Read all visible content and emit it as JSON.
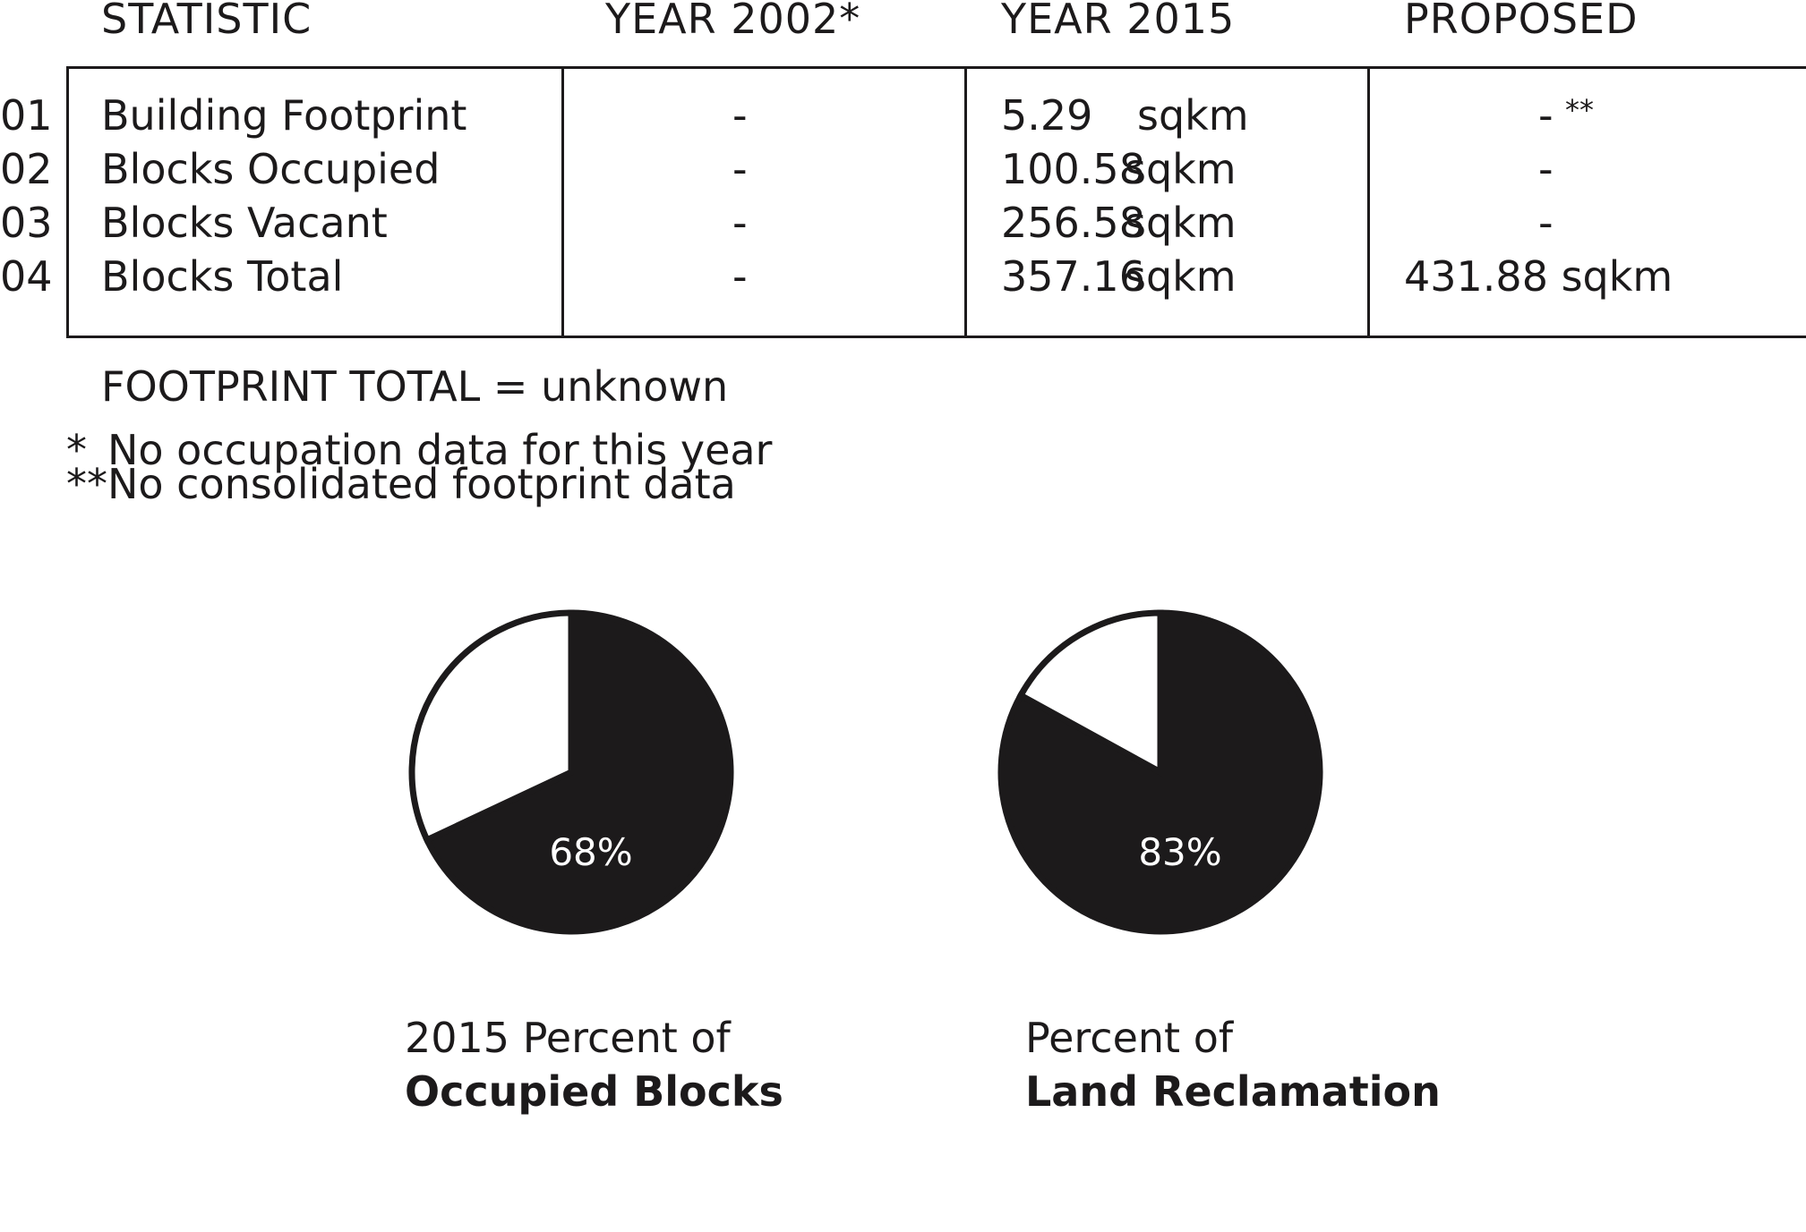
{
  "table": {
    "headers": [
      "STATISTIC",
      "YEAR 2002*",
      "YEAR 2015",
      "PROPOSED"
    ],
    "rows": [
      {
        "num": "01",
        "statistic": "Building Footprint",
        "y2002": "-",
        "y2015_val": "5.29",
        "y2015_unit": "sqkm",
        "proposed": "-",
        "proposed_mark": "**"
      },
      {
        "num": "02",
        "statistic": "Blocks Occupied",
        "y2002": "-",
        "y2015_val": "100.58",
        "y2015_unit": "sqkm",
        "proposed": "-",
        "proposed_mark": ""
      },
      {
        "num": "03",
        "statistic": "Blocks Vacant",
        "y2002": "-",
        "y2015_val": "256.58",
        "y2015_unit": "sqkm",
        "proposed": "-",
        "proposed_mark": ""
      },
      {
        "num": "04",
        "statistic": "Blocks Total",
        "y2002": "-",
        "y2015_val": "357.16",
        "y2015_unit": "sqkm",
        "proposed": "431.88 sqkm",
        "proposed_mark": ""
      }
    ]
  },
  "footprint_total": "FOOTPRINT TOTAL = unknown",
  "footnotes": [
    {
      "mark": "*",
      "text": "No occupation data for this year"
    },
    {
      "mark": "**",
      "text": "No consolidated footprint data"
    }
  ],
  "colors": {
    "ink": "#1c1a1b",
    "background": "#ffffff"
  },
  "chart_data": [
    {
      "type": "pie",
      "title_line1": "2015 Percent of",
      "title_line2": "Occupied Blocks",
      "value_label": "68%",
      "slices": [
        {
          "value": 68,
          "color": "#1c1a1b"
        },
        {
          "value": 32,
          "color": "#ffffff"
        }
      ]
    },
    {
      "type": "pie",
      "title_line1": "Percent of",
      "title_line2": "Land Reclamation",
      "value_label": "83%",
      "slices": [
        {
          "value": 83,
          "color": "#1c1a1b"
        },
        {
          "value": 17,
          "color": "#ffffff"
        }
      ]
    }
  ]
}
